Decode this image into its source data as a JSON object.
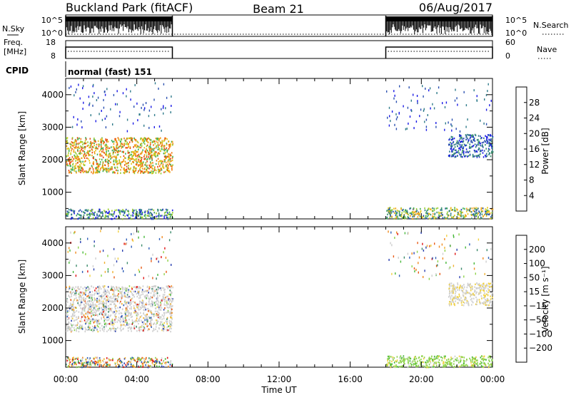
{
  "header": {
    "station": "Buckland Park (fitACF)",
    "beam": "Beam 21",
    "date": "06/Aug/2017"
  },
  "status_panels": {
    "nsky": {
      "left_label": "N.Sky",
      "right_label": "N.Search",
      "left_ticks": [
        "10^5",
        "10^0"
      ],
      "right_ticks": [
        "10^5",
        "10^0"
      ]
    },
    "freq": {
      "left_label_1": "Freq.",
      "left_label_2": "[MHz]",
      "right_label": "Nave",
      "left_ticks": [
        "18",
        "8"
      ],
      "right_ticks": [
        "60",
        "0"
      ]
    },
    "cpid": {
      "label": "CPID",
      "mode": "normal (fast) 151"
    }
  },
  "x_axis": {
    "label": "Time UT",
    "ticks": [
      "00:00",
      "04:00",
      "08:00",
      "12:00",
      "16:00",
      "20:00",
      "00:00"
    ]
  },
  "chart_data": [
    {
      "type": "heatmap",
      "name": "power",
      "ylabel": "Slant Range [km]",
      "ylim": [
        180,
        4500
      ],
      "yticks": [
        1000,
        2000,
        3000,
        4000
      ],
      "xlim_hours": [
        0,
        24
      ],
      "data_segments_hours": [
        [
          0,
          6
        ],
        [
          18,
          24
        ]
      ],
      "colorbar": {
        "label": "Power [dB]",
        "ticks": [
          "4",
          "8",
          "12",
          "16",
          "20",
          "24",
          "28"
        ],
        "colors": [
          "#1a1ae6",
          "#2a4fb0",
          "#2f7b8a",
          "#3e9470",
          "#3fae55",
          "#9acd32",
          "#e6c619",
          "#f0a015",
          "#f07a10",
          "#e84a10",
          "#e01010"
        ]
      },
      "regions": [
        {
          "t_start": 0,
          "t_end": 6,
          "range_low": 1600,
          "range_high": 2700,
          "level": "16-24 dB, peak 24 dB near 04:00, 1700 km"
        },
        {
          "t_start": 0,
          "t_end": 6,
          "range_low": 200,
          "range_high": 500,
          "level": "4-16 dB"
        },
        {
          "t_start": 18,
          "t_end": 24,
          "range_low": 200,
          "range_high": 550,
          "level": "8-20 dB"
        },
        {
          "t_start": 21.5,
          "t_end": 24,
          "range_low": 2100,
          "range_high": 2800,
          "level": "4-12 dB"
        }
      ]
    },
    {
      "type": "heatmap",
      "name": "velocity",
      "ylabel": "Slant Range [km]",
      "ylim": [
        180,
        4500
      ],
      "yticks": [
        1000,
        2000,
        3000,
        4000
      ],
      "xlim_hours": [
        0,
        24
      ],
      "data_segments_hours": [
        [
          0,
          6
        ],
        [
          18,
          24
        ]
      ],
      "colorbar": {
        "label": "Velocity [m s⁻¹]",
        "ticks": [
          "200",
          "100",
          "50",
          "15",
          "−15",
          "−50",
          "−100",
          "−200"
        ],
        "colors": [
          "#2a3fb0",
          "#2f5fb8",
          "#3a8a6a",
          "#47b83a",
          "#8ed34a",
          "#cfcfcf",
          "#f0d040",
          "#f0b030",
          "#f08a20",
          "#e85a15",
          "#e01010"
        ]
      },
      "regions": [
        {
          "t_start": 0,
          "t_end": 6,
          "range_low": 1300,
          "range_high": 2700,
          "level": "mostly −15 to 15 m/s (grey)"
        },
        {
          "t_start": 0,
          "t_end": 6,
          "range_low": 200,
          "range_high": 500,
          "level": "mixed, −200 to 200 m/s"
        },
        {
          "t_start": 18,
          "t_end": 24,
          "range_low": 200,
          "range_high": 550,
          "level": "15 to 50 m/s (green)"
        },
        {
          "t_start": 21.5,
          "t_end": 24,
          "range_low": 2100,
          "range_high": 2800,
          "level": "−15 to 15 m/s (grey)"
        }
      ]
    }
  ]
}
